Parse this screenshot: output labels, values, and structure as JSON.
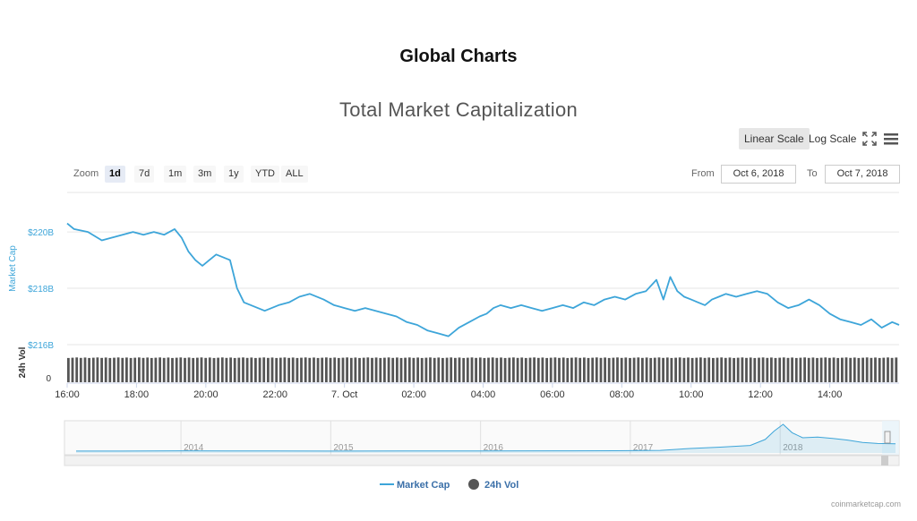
{
  "header": {
    "page_title": "Global Charts"
  },
  "toolbar": {
    "linear_scale": "Linear Scale",
    "log_scale": "Log Scale",
    "fullscreen_icon": "fullscreen-icon",
    "menu_icon": "hamburger-menu-icon"
  },
  "range_selector": {
    "zoom_label": "Zoom",
    "buttons": [
      "1d",
      "7d",
      "1m",
      "3m",
      "1y",
      "YTD",
      "ALL"
    ],
    "selected": "1d",
    "from_label": "From",
    "from_value": "Oct 6, 2018",
    "to_label": "To",
    "to_value": "Oct 7, 2018"
  },
  "footer": {
    "credit": "coinmarketcap.com"
  },
  "colors": {
    "market_cap": "#3da5d9",
    "volume": "#555555",
    "grid": "#e6e6e6"
  },
  "chart_data": {
    "type": "line",
    "title": "Total Market Capitalization",
    "y_axis_label": "Market Cap",
    "y_ticks": [
      "$216B",
      "$218B",
      "$220B"
    ],
    "ylim": [
      216,
      221.4
    ],
    "y_unit": "$B",
    "x_ticks": [
      "16:00",
      "18:00",
      "20:00",
      "22:00",
      "7. Oct",
      "02:00",
      "04:00",
      "06:00",
      "08:00",
      "10:00",
      "12:00",
      "14:00"
    ],
    "x_range_hours": [
      16,
      40
    ],
    "series": [
      {
        "name": "Market Cap",
        "x_hours": [
          16.0,
          16.2,
          16.6,
          17.0,
          17.3,
          17.6,
          17.9,
          18.2,
          18.5,
          18.8,
          19.1,
          19.3,
          19.5,
          19.7,
          19.9,
          20.1,
          20.3,
          20.5,
          20.7,
          20.9,
          21.1,
          21.3,
          21.5,
          21.7,
          21.9,
          22.1,
          22.4,
          22.7,
          23.0,
          23.4,
          23.7,
          24.0,
          24.3,
          24.6,
          24.9,
          25.2,
          25.5,
          25.8,
          26.1,
          26.4,
          26.7,
          27.0,
          27.3,
          27.6,
          27.9,
          28.1,
          28.3,
          28.5,
          28.8,
          29.1,
          29.4,
          29.7,
          30.0,
          30.3,
          30.6,
          30.9,
          31.2,
          31.5,
          31.8,
          32.1,
          32.4,
          32.7,
          33.0,
          33.2,
          33.4,
          33.6,
          33.8,
          34.0,
          34.2,
          34.4,
          34.6,
          34.8,
          35.0,
          35.3,
          35.6,
          35.9,
          36.2,
          36.5,
          36.8,
          37.1,
          37.4,
          37.7,
          38.0,
          38.3,
          38.6,
          38.9,
          39.2,
          39.5,
          39.8,
          40.0
        ],
        "values": [
          220.3,
          220.1,
          220.0,
          219.7,
          219.8,
          219.9,
          220.0,
          219.9,
          220.0,
          219.9,
          220.1,
          219.8,
          219.3,
          219.0,
          218.8,
          219.0,
          219.2,
          219.1,
          219.0,
          218.0,
          217.5,
          217.4,
          217.3,
          217.2,
          217.3,
          217.4,
          217.5,
          217.7,
          217.8,
          217.6,
          217.4,
          217.3,
          217.2,
          217.3,
          217.2,
          217.1,
          217.0,
          216.8,
          216.7,
          216.5,
          216.4,
          216.3,
          216.6,
          216.8,
          217.0,
          217.1,
          217.3,
          217.4,
          217.3,
          217.4,
          217.3,
          217.2,
          217.3,
          217.4,
          217.3,
          217.5,
          217.4,
          217.6,
          217.7,
          217.6,
          217.8,
          217.9,
          218.3,
          217.6,
          218.4,
          217.9,
          217.7,
          217.6,
          217.5,
          217.4,
          217.6,
          217.7,
          217.8,
          217.7,
          217.8,
          217.9,
          217.8,
          217.5,
          217.3,
          217.4,
          217.6,
          217.4,
          217.1,
          216.9,
          216.8,
          216.7,
          216.9,
          216.6,
          216.8,
          216.7
        ]
      },
      {
        "name": "24h Vol",
        "axis_label": "24h Vol",
        "y_ticks": [
          "0"
        ],
        "bar_count": 200,
        "relative_level": 0.93
      }
    ],
    "navigator": {
      "year_labels": [
        "2014",
        "2015",
        "2016",
        "2017",
        "2018"
      ],
      "x_years": [
        2013.3,
        2013.6,
        2014.0,
        2014.3,
        2014.6,
        2015.0,
        2015.5,
        2016.0,
        2016.5,
        2016.9,
        2017.2,
        2017.4,
        2017.6,
        2017.8,
        2017.9,
        2017.96,
        2018.02,
        2018.08,
        2018.15,
        2018.25,
        2018.35,
        2018.45,
        2018.55,
        2018.65,
        2018.77
      ],
      "values": [
        1.5,
        2,
        10,
        7,
        5,
        4,
        5,
        7,
        10,
        14,
        25,
        80,
        120,
        170,
        350,
        600,
        800,
        550,
        400,
        420,
        380,
        330,
        260,
        230,
        220
      ]
    },
    "legend": {
      "position": "bottom-center",
      "entries": [
        "Market Cap",
        "24h Vol"
      ]
    }
  }
}
